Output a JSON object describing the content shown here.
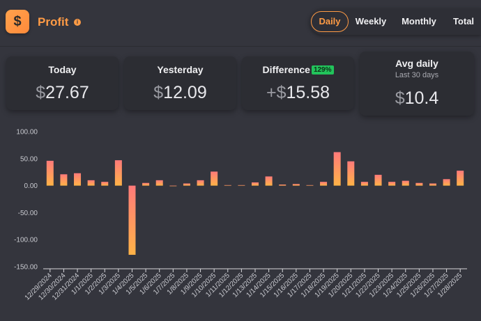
{
  "header": {
    "title": "Profit",
    "logo_glyph": "$",
    "info_icon": "info-icon"
  },
  "tabs": [
    {
      "label": "Daily",
      "active": true
    },
    {
      "label": "Weekly",
      "active": false
    },
    {
      "label": "Monthly",
      "active": false
    },
    {
      "label": "Total",
      "active": false
    }
  ],
  "cards": {
    "today": {
      "label": "Today",
      "currency": "$",
      "value": "27.67"
    },
    "yesterday": {
      "label": "Yesterday",
      "currency": "$",
      "value": "12.09"
    },
    "difference": {
      "label": "Difference",
      "badge": "129%",
      "prefix": "+",
      "currency": "$",
      "value": "15.58"
    },
    "avg": {
      "label": "Avg daily",
      "sub": "Last 30 days",
      "currency": "$",
      "value": "10.4"
    }
  },
  "colors": {
    "accent": "#ff9b45",
    "bar_top": "#ff7a7a",
    "bar_bottom": "#ffb347",
    "badge": "#22c35b",
    "background": "#34353d"
  },
  "chart_data": {
    "type": "bar",
    "categories": [
      "12/29/2024",
      "12/30/2024",
      "12/31/2024",
      "1/1/2025",
      "1/2/2025",
      "1/3/2025",
      "1/4/2025",
      "1/5/2025",
      "1/6/2025",
      "1/7/2025",
      "1/8/2025",
      "1/9/2025",
      "1/10/2025",
      "1/11/2025",
      "1/12/2025",
      "1/13/2025",
      "1/14/2025",
      "1/15/2025",
      "1/16/2025",
      "1/17/2025",
      "1/18/2025",
      "1/19/2025",
      "1/20/2025",
      "1/21/2025",
      "1/22/2025",
      "1/23/2025",
      "1/24/2025",
      "1/25/2025",
      "1/26/2025",
      "1/27/2025",
      "1/28/2025"
    ],
    "values": [
      46,
      21,
      23,
      10,
      7,
      47,
      -128,
      5,
      10,
      0,
      4,
      10,
      26,
      1,
      1,
      6,
      17,
      2,
      3,
      1,
      7,
      62,
      45,
      7,
      20,
      7,
      9,
      5,
      4,
      12,
      27.67
    ],
    "yticks": [
      "100.00",
      "50.00",
      "0.00",
      "-50.00",
      "-100.00",
      "-150.00"
    ],
    "ylim": [
      -150,
      100
    ],
    "grid": false,
    "legend": "none"
  }
}
